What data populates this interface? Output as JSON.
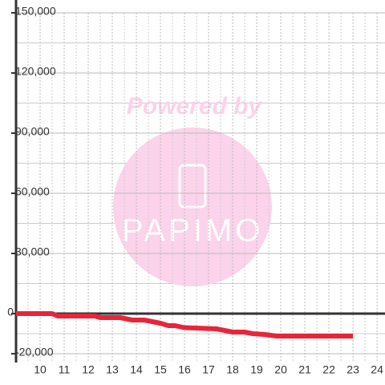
{
  "chart_data": {
    "type": "line",
    "x": [
      9,
      10.5,
      10.73,
      12.27,
      12.5,
      13.33,
      13.83,
      14.33,
      15,
      15.33,
      15.6,
      16,
      16.5,
      17.33,
      18,
      18.5,
      18.83,
      19.33,
      19.83,
      23
    ],
    "series": [
      {
        "color": "#e8253a",
        "values": [
          0,
          0,
          -1200,
          -1200,
          -2000,
          -2000,
          -3200,
          -3200,
          -4800,
          -6000,
          -6000,
          -7000,
          -7200,
          -7600,
          -9200,
          -9200,
          -10000,
          -10400,
          -11200,
          -11200
        ]
      }
    ],
    "xlim": [
      9,
      24.33
    ],
    "xticks": [
      10,
      11,
      12,
      13,
      14,
      15,
      16,
      17,
      18,
      19,
      20,
      21,
      22,
      23,
      24
    ],
    "ylim": [
      -20000,
      150000
    ],
    "yticks": [
      {
        "value": -20000,
        "label": "-20,000"
      },
      0,
      {
        "value": 30000,
        "label": "30,000"
      },
      {
        "value": 60000,
        "label": "60,000"
      },
      {
        "value": 90000,
        "label": "90,000"
      },
      {
        "value": 120000,
        "label": "120,000"
      },
      {
        "value": 150000,
        "label": "150,000"
      }
    ],
    "grid": true,
    "annotations": [
      "Powered by",
      "PAPIMO"
    ]
  }
}
